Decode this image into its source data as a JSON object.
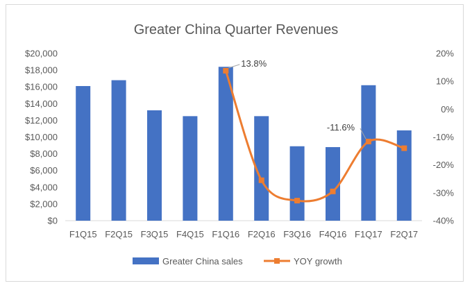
{
  "chart_data": {
    "type": "bar",
    "title": "Greater China Quarter Revenues",
    "categories": [
      "F1Q15",
      "F2Q15",
      "F3Q15",
      "F4Q15",
      "F1Q16",
      "F2Q16",
      "F3Q16",
      "F4Q16",
      "F1Q17",
      "F2Q17"
    ],
    "series": [
      {
        "name": "Greater China sales",
        "type": "bar",
        "axis": "left",
        "color": "#4472c4",
        "values": [
          16100,
          16800,
          13200,
          12500,
          18400,
          12500,
          8900,
          8800,
          16200,
          10800
        ]
      },
      {
        "name": "YOY growth",
        "type": "line",
        "axis": "right",
        "color": "#ed7d31",
        "values": [
          null,
          null,
          null,
          null,
          13.8,
          -25.5,
          -32.8,
          -29.5,
          -11.6,
          -14.0
        ]
      }
    ],
    "y_left": {
      "min": 0,
      "max": 20000,
      "ticks": [
        "$0",
        "$2,000",
        "$4,000",
        "$6,000",
        "$8,000",
        "$10,000",
        "$12,000",
        "$14,000",
        "$16,000",
        "$18,000",
        "$20,000"
      ]
    },
    "y_right": {
      "min": -40,
      "max": 20,
      "ticks": [
        "-40%",
        "-30%",
        "-20%",
        "-10%",
        "0%",
        "10%",
        "20%"
      ]
    },
    "annotations": [
      {
        "category": "F1Q16",
        "series": "YOY growth",
        "text": "13.8%"
      },
      {
        "category": "F1Q17",
        "series": "YOY growth",
        "text": "-11.6%"
      }
    ],
    "grid": false,
    "legend": "bottom"
  }
}
